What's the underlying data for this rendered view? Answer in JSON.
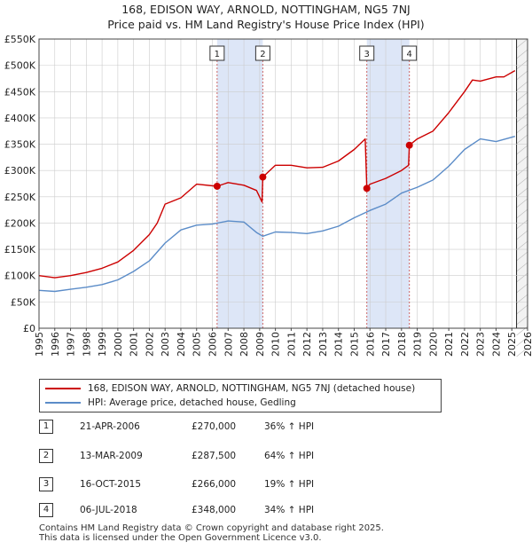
{
  "title_line1": "168, EDISON WAY, ARNOLD, NOTTINGHAM, NG5 7NJ",
  "title_line2": "Price paid vs. HM Land Registry's House Price Index (HPI)",
  "legend": {
    "property_label": "168, EDISON WAY, ARNOLD, NOTTINGHAM, NG5 7NJ (detached house)",
    "hpi_label": "HPI: Average price, detached house, Gedling"
  },
  "colors": {
    "property": "#cc0000",
    "hpi": "#5b8cc8",
    "band": "#dde6f7",
    "grid": "#cccccc",
    "marker_line": "#cc6666"
  },
  "sales": [
    {
      "num": "1",
      "date": "21-APR-2006",
      "price": "£270,000",
      "hpi": "36% ↑ HPI"
    },
    {
      "num": "2",
      "date": "13-MAR-2009",
      "price": "£287,500",
      "hpi": "64% ↑ HPI"
    },
    {
      "num": "3",
      "date": "16-OCT-2015",
      "price": "£266,000",
      "hpi": "19% ↑ HPI"
    },
    {
      "num": "4",
      "date": "06-JUL-2018",
      "price": "£348,000",
      "hpi": "34% ↑ HPI"
    }
  ],
  "footer": {
    "line1": "Contains HM Land Registry data © Crown copyright and database right 2025.",
    "line2": "This data is licensed under the Open Government Licence v3.0."
  },
  "chart_data": {
    "type": "line",
    "title": "Price paid vs. HM Land Registry's House Price Index (HPI)",
    "xlabel": "",
    "ylabel": "",
    "xlim": [
      1995,
      2026
    ],
    "ylim": [
      0,
      550000
    ],
    "x_ticks": [
      1995,
      1996,
      1997,
      1998,
      1999,
      2000,
      2001,
      2002,
      2003,
      2004,
      2005,
      2006,
      2007,
      2008,
      2009,
      2010,
      2011,
      2012,
      2013,
      2014,
      2015,
      2016,
      2017,
      2018,
      2019,
      2020,
      2021,
      2022,
      2023,
      2024,
      2025,
      2026
    ],
    "y_ticks": [
      0,
      50000,
      100000,
      150000,
      200000,
      250000,
      300000,
      350000,
      400000,
      450000,
      500000,
      550000
    ],
    "y_tick_labels": [
      "£0",
      "£50K",
      "£100K",
      "£150K",
      "£200K",
      "£250K",
      "£300K",
      "£350K",
      "£400K",
      "£450K",
      "£500K",
      "£550K"
    ],
    "shaded_periods": [
      [
        2006.3,
        2009.2
      ],
      [
        2015.8,
        2018.5
      ]
    ],
    "future_start": 2025.3,
    "sale_markers": [
      {
        "label": "1",
        "x": 2006.3,
        "y": 270000
      },
      {
        "label": "2",
        "x": 2009.2,
        "y": 287500
      },
      {
        "label": "3",
        "x": 2015.8,
        "y": 266000
      },
      {
        "label": "4",
        "x": 2018.5,
        "y": 348000
      }
    ],
    "series": [
      {
        "name": "168, EDISON WAY, ARNOLD, NOTTINGHAM, NG5 7NJ (detached house)",
        "x": [
          1995,
          1996,
          1997,
          1998,
          1999,
          2000,
          2001,
          2002,
          2002.5,
          2003,
          2004,
          2005,
          2006.3,
          2007,
          2008,
          2008.8,
          2009.15,
          2009.2,
          2010,
          2011,
          2012,
          2013,
          2014,
          2015,
          2015.7,
          2015.8,
          2016,
          2017,
          2018,
          2018.45,
          2018.5,
          2019,
          2020,
          2021,
          2022,
          2022.5,
          2023,
          2024,
          2024.5,
          2025.2
        ],
        "values": [
          100000,
          96000,
          100000,
          106000,
          114000,
          126000,
          148000,
          178000,
          200000,
          236000,
          248000,
          274000,
          270000,
          277000,
          272000,
          262000,
          240000,
          287500,
          310000,
          310000,
          305000,
          306000,
          318000,
          340000,
          360000,
          266000,
          274000,
          285000,
          300000,
          310000,
          348000,
          360000,
          375000,
          410000,
          450000,
          472000,
          470000,
          478000,
          478000,
          490000
        ]
      },
      {
        "name": "HPI: Average price, detached house, Gedling",
        "x": [
          1995,
          1996,
          1997,
          1998,
          1999,
          2000,
          2001,
          2002,
          2003,
          2004,
          2005,
          2006,
          2007,
          2008,
          2008.8,
          2009.2,
          2010,
          2011,
          2012,
          2013,
          2014,
          2015,
          2016,
          2017,
          2018,
          2019,
          2020,
          2021,
          2022,
          2023,
          2024,
          2025.2
        ],
        "values": [
          72000,
          70000,
          74000,
          78000,
          83000,
          92000,
          108000,
          128000,
          162000,
          187000,
          196000,
          198000,
          204000,
          202000,
          182000,
          175000,
          183000,
          182000,
          180000,
          185000,
          194000,
          210000,
          224000,
          236000,
          257000,
          268000,
          282000,
          308000,
          340000,
          360000,
          355000,
          365000
        ]
      }
    ]
  }
}
